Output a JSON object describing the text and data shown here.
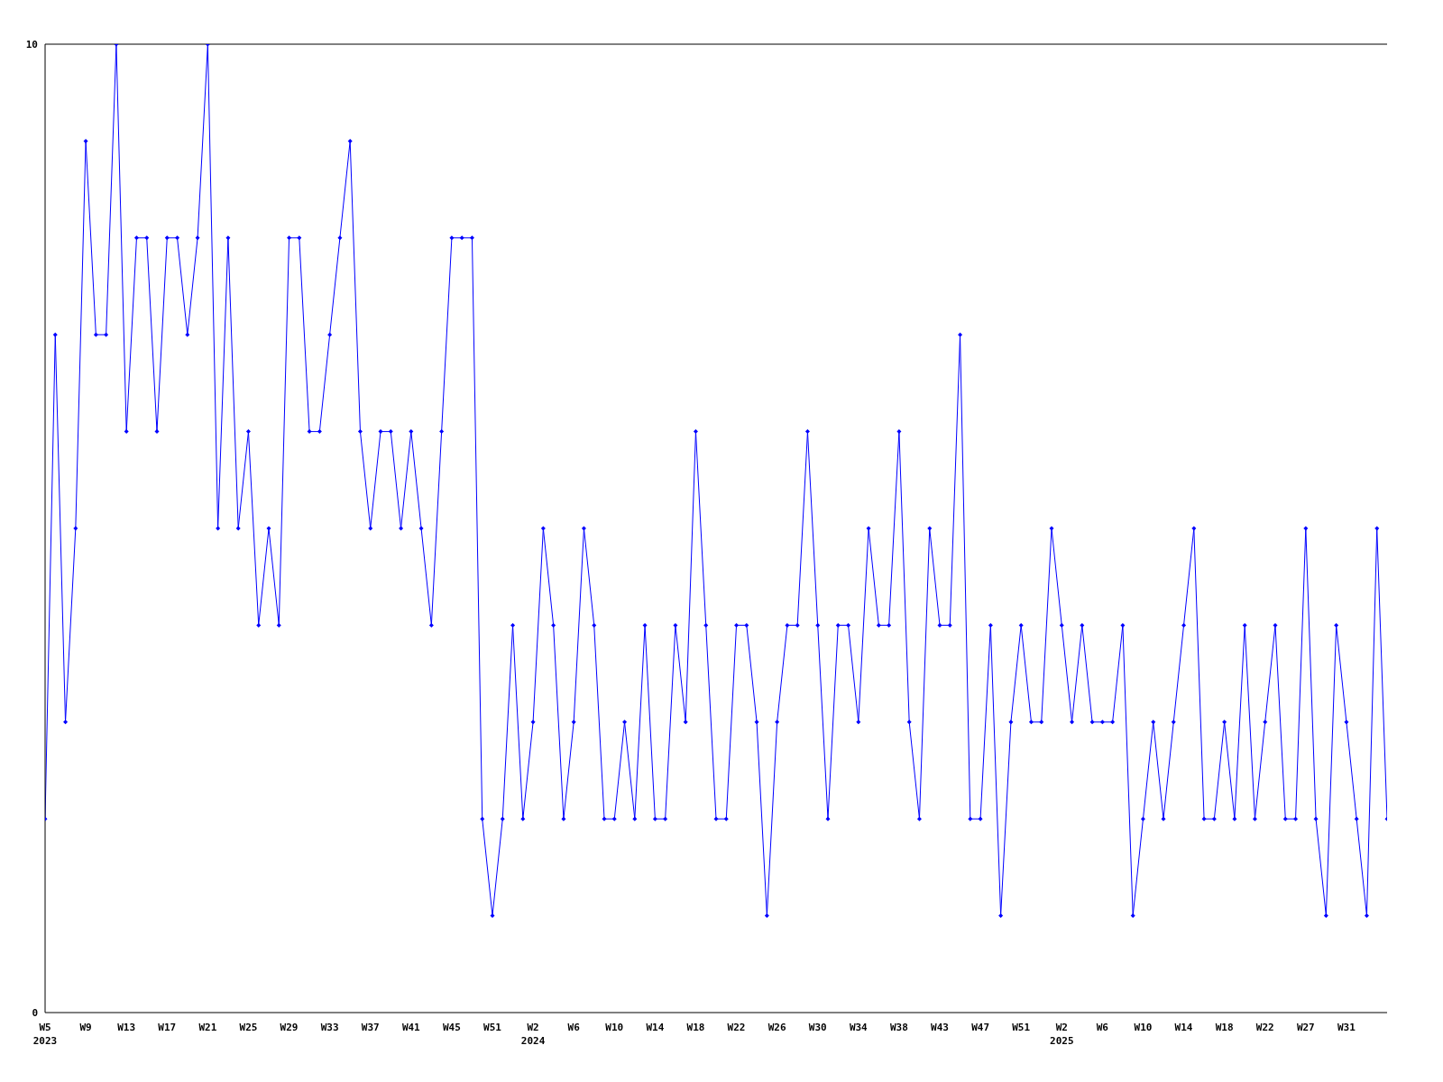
{
  "chart_data": {
    "type": "line",
    "categories": [
      "W5\n2023",
      null,
      null,
      null,
      "W9",
      null,
      null,
      null,
      "W13",
      null,
      null,
      null,
      "W17",
      null,
      null,
      null,
      "W21",
      null,
      null,
      null,
      "W25",
      null,
      null,
      null,
      "W29",
      null,
      null,
      null,
      "W33",
      null,
      null,
      null,
      "W37",
      null,
      null,
      null,
      "W41",
      null,
      null,
      null,
      "W45",
      null,
      null,
      null,
      "W51",
      null,
      null,
      null,
      "W2\n2024",
      null,
      null,
      null,
      "W6",
      null,
      null,
      null,
      "W10",
      null,
      null,
      null,
      "W14",
      null,
      null,
      null,
      "W18",
      null,
      null,
      null,
      "W22",
      null,
      null,
      null,
      "W26",
      null,
      null,
      null,
      "W30",
      null,
      null,
      null,
      "W34",
      null,
      null,
      null,
      "W38",
      null,
      null,
      null,
      "W43",
      null,
      null,
      null,
      "W47",
      null,
      null,
      null,
      "W51",
      null,
      null,
      null,
      "W2\n2025",
      null,
      null,
      null,
      "W6",
      null,
      null,
      null,
      "W10",
      null,
      null,
      null,
      "W14",
      null,
      null,
      null,
      "W18",
      null,
      null,
      null,
      "W22",
      null,
      null,
      null,
      "W27",
      null,
      null,
      null,
      "W31",
      null,
      null,
      null,
      null
    ],
    "series": [
      {
        "color": "#0000ff",
        "values": [
          2,
          7,
          3,
          5,
          9,
          7,
          7,
          10,
          6,
          8,
          8,
          6,
          8,
          8,
          7,
          8,
          10,
          5,
          8,
          5,
          6,
          4,
          5,
          4,
          8,
          8,
          6,
          6,
          7,
          8,
          9,
          6,
          5,
          6,
          6,
          5,
          6,
          5,
          4,
          6,
          8,
          8,
          8,
          2,
          1,
          2,
          4,
          2,
          3,
          5,
          4,
          2,
          3,
          5,
          4,
          2,
          2,
          3,
          2,
          4,
          2,
          2,
          4,
          3,
          6,
          4,
          2,
          2,
          4,
          4,
          3,
          1,
          3,
          4,
          4,
          6,
          4,
          2,
          4,
          4,
          3,
          5,
          4,
          4,
          6,
          3,
          2,
          5,
          4,
          4,
          7,
          2,
          2,
          4,
          1,
          3,
          4,
          3,
          3,
          5,
          4,
          3,
          4,
          3,
          3,
          3,
          4,
          1,
          2,
          3,
          2,
          3,
          4,
          5,
          2,
          2,
          3,
          2,
          4,
          2,
          3,
          4,
          2,
          2,
          5,
          2,
          1,
          4,
          3,
          2,
          1,
          5,
          2
        ]
      }
    ],
    "ylim": [
      0,
      10
    ],
    "yticks": [
      0,
      10
    ],
    "marker": "diamond",
    "line_style": "solid"
  }
}
